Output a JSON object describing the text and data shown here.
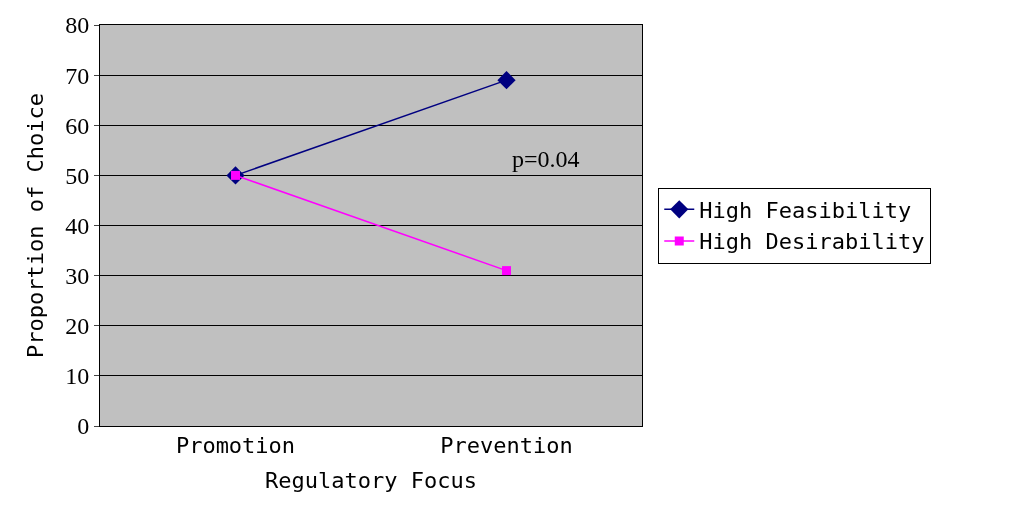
{
  "chart_data": {
    "type": "line",
    "xlabel": "Regulatory Focus",
    "ylabel": "Proportion of Choice",
    "categories": [
      "Promotion",
      "Prevention"
    ],
    "series": [
      {
        "name": "High Feasibility",
        "color": "#000080",
        "values": [
          50,
          69
        ],
        "marker": "diamond"
      },
      {
        "name": "High Desirability",
        "color": "#ff00ff",
        "values": [
          50,
          31
        ],
        "marker": "square"
      }
    ],
    "ylim": [
      0,
      80
    ],
    "yticks": [
      0,
      10,
      20,
      30,
      40,
      50,
      60,
      70,
      80
    ],
    "grid": "y",
    "legend": "right",
    "annotations": [
      "p=0.04"
    ]
  }
}
